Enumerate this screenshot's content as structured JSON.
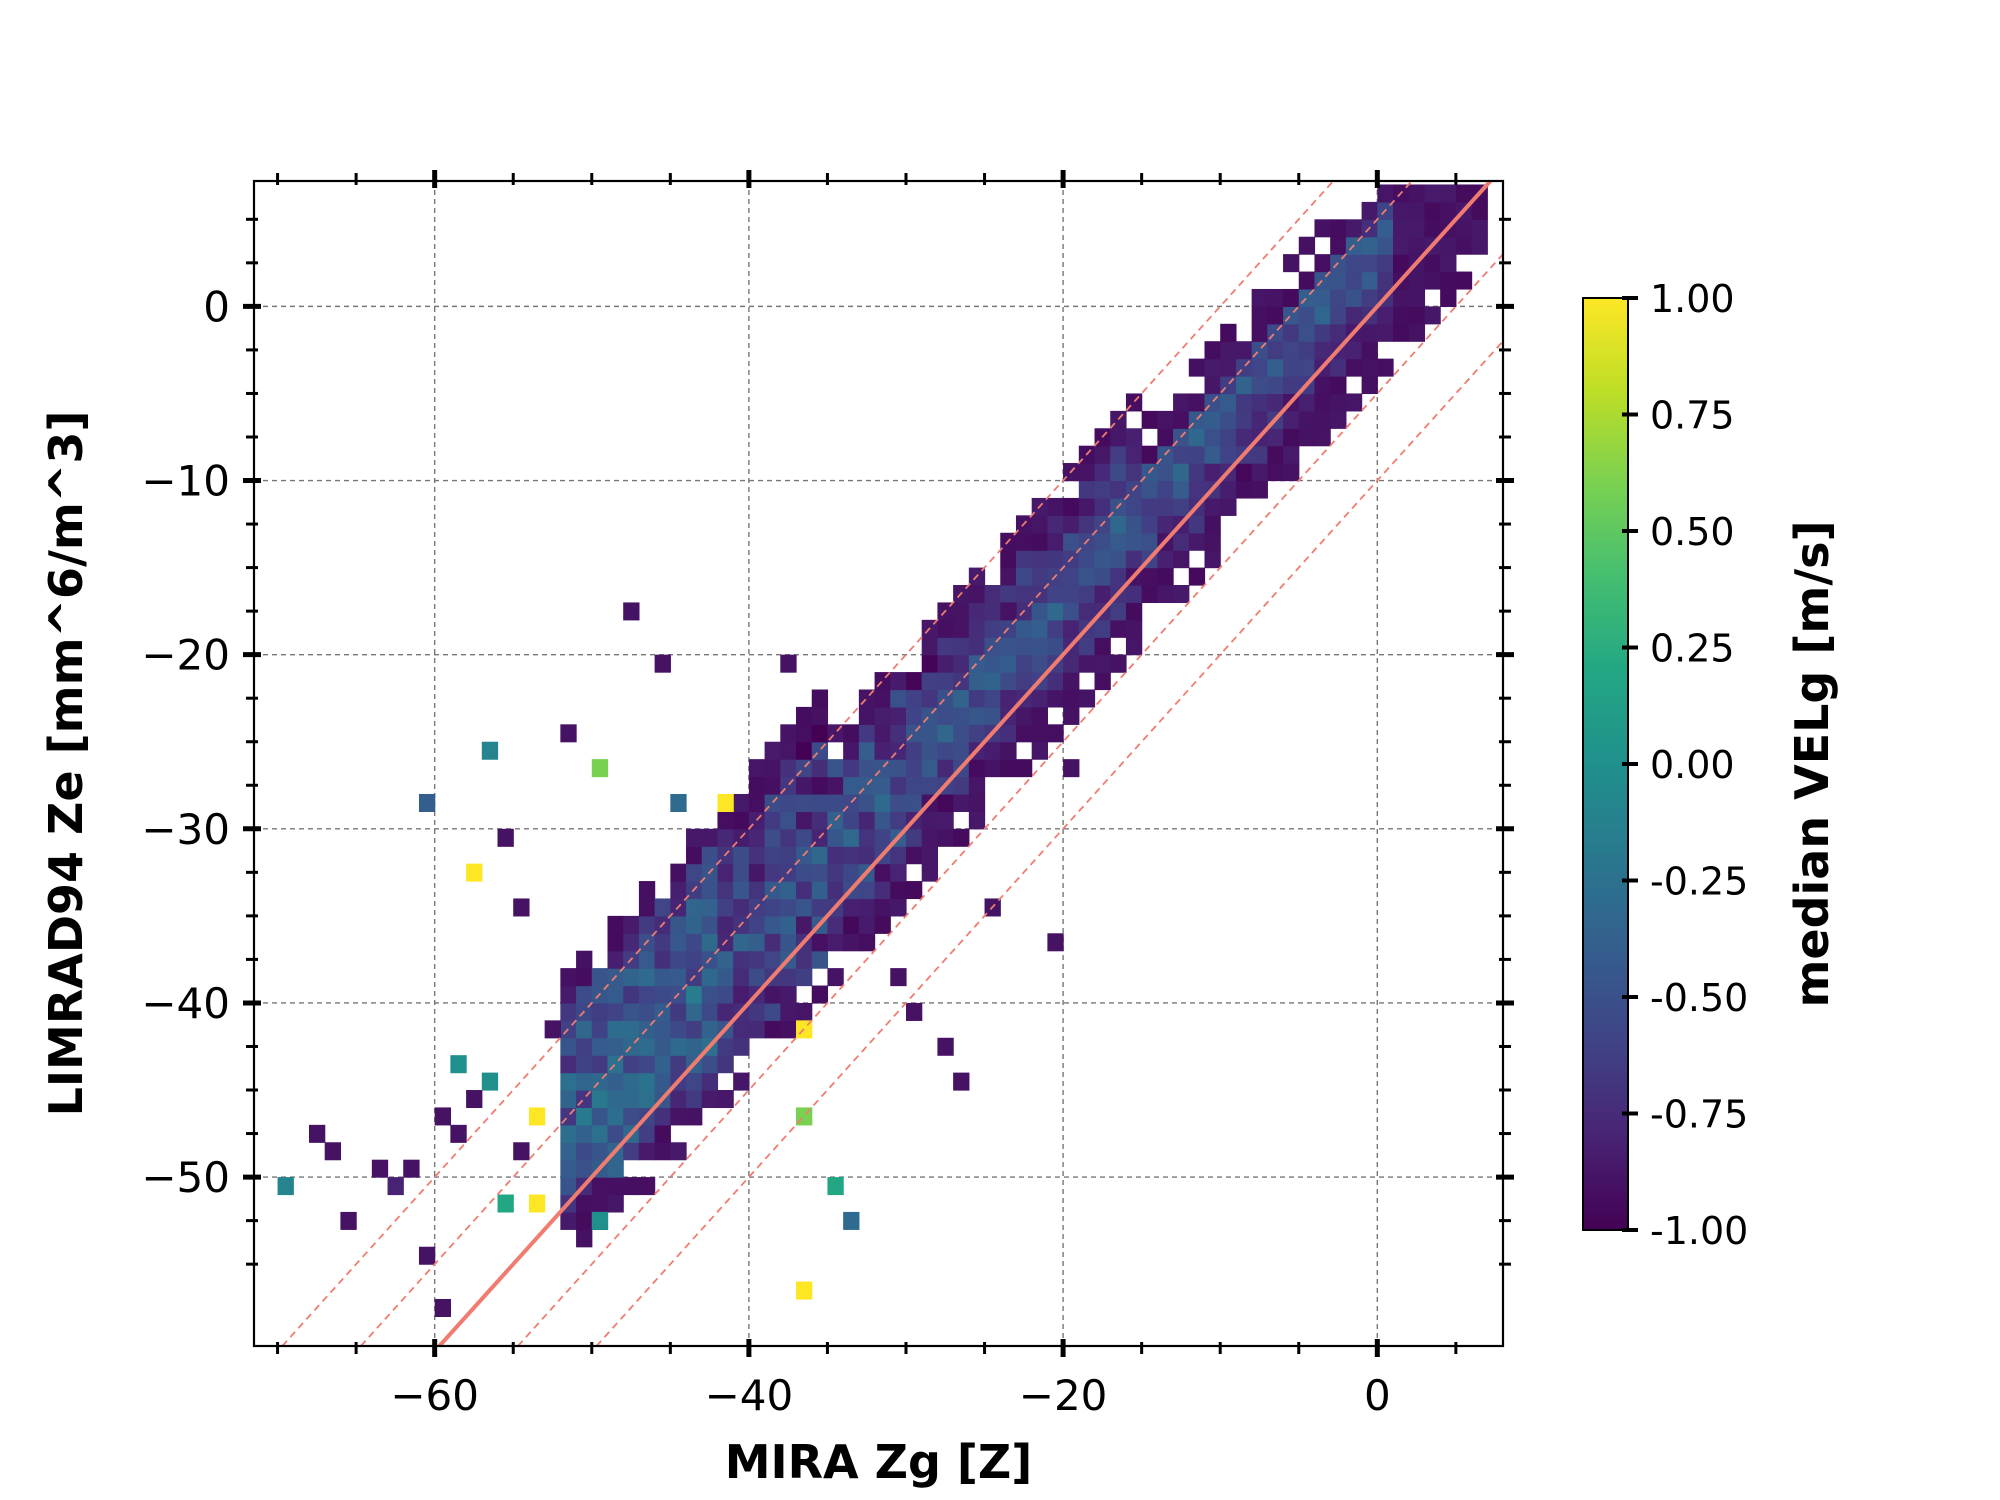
{
  "chart_data": {
    "type": "heatmap",
    "title": "",
    "xlabel": "MIRA Zg [Z]",
    "ylabel": "LIMRAD94 Ze [mm^6/m^3]",
    "xlim": [
      -71.5,
      8
    ],
    "ylim": [
      -59.7,
      7.2
    ],
    "x_ticks": [
      -60,
      -40,
      -20,
      0
    ],
    "x_tick_labels": [
      "−60",
      "−40",
      "−20",
      "0"
    ],
    "y_ticks": [
      0,
      -10,
      -20,
      -30,
      -40,
      -50
    ],
    "y_tick_labels": [
      "0",
      "−10",
      "−20",
      "−30",
      "−40",
      "−50"
    ],
    "grid": true,
    "bin_size": 1,
    "colorbar": {
      "label": "median VELg [m/s]",
      "range": [
        -1,
        1
      ],
      "ticks": [
        1.0,
        0.75,
        0.5,
        0.25,
        0.0,
        -0.25,
        -0.5,
        -0.75,
        -1.0
      ],
      "tick_labels": [
        "1.00",
        "0.75",
        "0.50",
        "0.25",
        "0.00",
        "-0.25",
        "-0.50",
        "-0.75",
        "-1.00"
      ],
      "colormap": "viridis"
    },
    "reference_lines": [
      {
        "style": "solid",
        "offset": 0,
        "color": "#f07c70"
      },
      {
        "style": "dashed",
        "offset": 5,
        "color": "#f07c70"
      },
      {
        "style": "dashed",
        "offset": -5,
        "color": "#f07c70"
      },
      {
        "style": "dashed",
        "offset": 10,
        "color": "#f07c70"
      },
      {
        "style": "dashed",
        "offset": -10,
        "color": "#f07c70"
      }
    ],
    "outlier_points": [
      {
        "x": -70,
        "y": -51,
        "v": -0.1
      },
      {
        "x": -68,
        "y": -48,
        "v": -0.9
      },
      {
        "x": -67,
        "y": -49,
        "v": -0.9
      },
      {
        "x": -66,
        "y": -53,
        "v": -0.9
      },
      {
        "x": -64,
        "y": -50,
        "v": -0.9
      },
      {
        "x": -63,
        "y": -51,
        "v": -0.8
      },
      {
        "x": -62,
        "y": -50,
        "v": -0.9
      },
      {
        "x": -61,
        "y": -55,
        "v": -0.9
      },
      {
        "x": -61,
        "y": -29,
        "v": -0.4
      },
      {
        "x": -60,
        "y": -47,
        "v": -0.9
      },
      {
        "x": -60,
        "y": -58,
        "v": -0.9
      },
      {
        "x": -59,
        "y": -44,
        "v": 0.0
      },
      {
        "x": -59,
        "y": -48,
        "v": -0.9
      },
      {
        "x": -58,
        "y": -33,
        "v": 1.0
      },
      {
        "x": -58,
        "y": -46,
        "v": -0.9
      },
      {
        "x": -57,
        "y": -26,
        "v": -0.1
      },
      {
        "x": -57,
        "y": -45,
        "v": 0.0
      },
      {
        "x": -56,
        "y": -31,
        "v": -0.9
      },
      {
        "x": -56,
        "y": -52,
        "v": 0.2
      },
      {
        "x": -55,
        "y": -35,
        "v": -0.9
      },
      {
        "x": -55,
        "y": -49,
        "v": -0.9
      },
      {
        "x": -54,
        "y": -47,
        "v": 1.0
      },
      {
        "x": -54,
        "y": -52,
        "v": 1.0
      },
      {
        "x": -53,
        "y": -42,
        "v": -0.9
      },
      {
        "x": -52,
        "y": -25,
        "v": -0.9
      },
      {
        "x": -50,
        "y": -27,
        "v": 0.6
      },
      {
        "x": -50,
        "y": -53,
        "v": 0.0
      },
      {
        "x": -48,
        "y": -18,
        "v": -0.9
      },
      {
        "x": -46,
        "y": -21,
        "v": -0.9
      },
      {
        "x": -45,
        "y": -29,
        "v": -0.3
      },
      {
        "x": -42,
        "y": -29,
        "v": 1.0
      },
      {
        "x": -38,
        "y": -21,
        "v": -0.9
      },
      {
        "x": -37,
        "y": -42,
        "v": 1.0
      },
      {
        "x": -37,
        "y": -47,
        "v": 0.6
      },
      {
        "x": -37,
        "y": -57,
        "v": 1.0
      },
      {
        "x": -35,
        "y": -51,
        "v": 0.2
      },
      {
        "x": -34,
        "y": -53,
        "v": -0.3
      },
      {
        "x": -31,
        "y": -39,
        "v": -0.9
      },
      {
        "x": -30,
        "y": -41,
        "v": -0.9
      },
      {
        "x": -28,
        "y": -43,
        "v": -0.9
      },
      {
        "x": -27,
        "y": -45,
        "v": -0.9
      },
      {
        "x": -25,
        "y": -35,
        "v": -0.9
      },
      {
        "x": -24,
        "y": -18,
        "v": -0.9
      },
      {
        "x": -21,
        "y": -37,
        "v": -0.9
      },
      {
        "x": -20,
        "y": -27,
        "v": -0.9
      },
      {
        "x": -17,
        "y": -21,
        "v": -0.9
      },
      {
        "x": -20,
        "y": -10,
        "v": -0.9
      }
    ]
  }
}
